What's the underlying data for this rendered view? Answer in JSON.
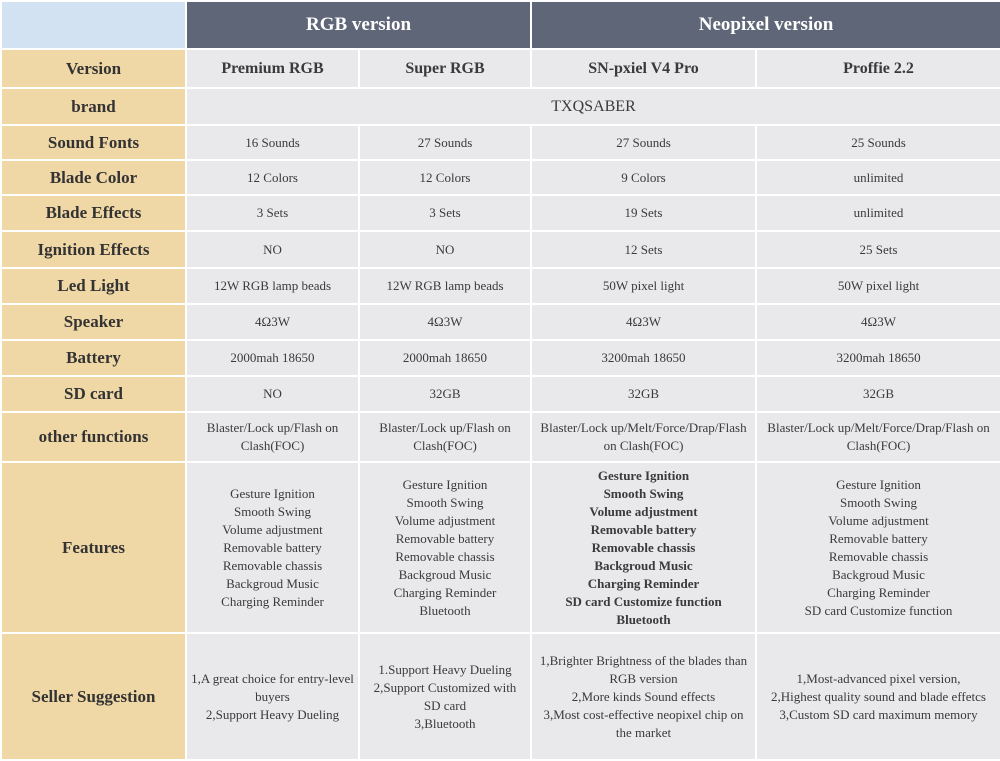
{
  "header": {
    "groups": [
      "RGB version",
      "Neopixel version"
    ]
  },
  "table": {
    "rows": [
      {
        "label": "Version",
        "cells": [
          "Premium RGB",
          "Super RGB",
          "SN-pxiel V4 Pro",
          "Proffie 2.2"
        ]
      },
      {
        "label": "brand",
        "cells": [
          "TXQSABER"
        ]
      },
      {
        "label": "Sound Fonts",
        "cells": [
          "16 Sounds",
          "27 Sounds",
          "27 Sounds",
          "25 Sounds"
        ]
      },
      {
        "label": "Blade Color",
        "cells": [
          "12 Colors",
          "12 Colors",
          "9 Colors",
          "unlimited"
        ]
      },
      {
        "label": "Blade Effects",
        "cells": [
          "3 Sets",
          "3 Sets",
          "19 Sets",
          "unlimited"
        ]
      },
      {
        "label": "Ignition Effects",
        "cells": [
          "NO",
          "NO",
          "12 Sets",
          "25 Sets"
        ]
      },
      {
        "label": "Led Light",
        "cells": [
          "12W RGB lamp beads",
          "12W RGB lamp beads",
          "50W pixel light",
          "50W pixel light"
        ]
      },
      {
        "label": "Speaker",
        "cells": [
          "4Ω3W",
          "4Ω3W",
          "4Ω3W",
          "4Ω3W"
        ]
      },
      {
        "label": "Battery",
        "cells": [
          "2000mah 18650",
          "2000mah 18650",
          "3200mah 18650",
          "3200mah 18650"
        ]
      },
      {
        "label": "SD card",
        "cells": [
          "NO",
          "32GB",
          "32GB",
          "32GB"
        ]
      },
      {
        "label": "other functions",
        "cells": [
          "Blaster/Lock up/Flash on Clash(FOC)",
          "Blaster/Lock up/Flash on Clash(FOC)",
          "Blaster/Lock up/Melt/Force/Drap/Flash on Clash(FOC)",
          "Blaster/Lock up/Melt/Force/Drap/Flash on Clash(FOC)"
        ]
      },
      {
        "label": "Features",
        "cells": [
          [
            "Gesture Ignition",
            "Smooth Swing",
            "Volume adjustment",
            "Removable battery",
            "Removable chassis",
            "Backgroud Music",
            "Charging Reminder"
          ],
          [
            "Gesture Ignition",
            "Smooth Swing",
            "Volume adjustment",
            "Removable battery",
            "Removable chassis",
            "Backgroud Music",
            "Charging Reminder",
            "Bluetooth"
          ],
          [
            "Gesture Ignition",
            "Smooth Swing",
            "Volume adjustment",
            "Removable battery",
            "Removable chassis",
            "Backgroud Music",
            "Charging Reminder",
            "SD card Customize function",
            "Bluetooth"
          ],
          [
            "Gesture Ignition",
            "Smooth Swing",
            "Volume adjustment",
            "Removable battery",
            "Removable chassis",
            "Backgroud Music",
            "Charging Reminder",
            "SD card Customize function"
          ]
        ]
      },
      {
        "label": "Seller Suggestion",
        "cells": [
          [
            "1,A great choice for entry-level buyers",
            "2,Support Heavy Dueling"
          ],
          [
            "1.Support Heavy Dueling",
            "2,Support Customized with SD card",
            "3,Bluetooth"
          ],
          [
            "1,Brighter Brightness of the blades than RGB version",
            "2,More kinds Sound effects",
            "3,Most cost-effective neopixel chip on the market"
          ],
          [
            "1,Most-advanced pixel version,",
            "2,Highest quality sound and blade effetcs",
            "3,Custom SD card maximum memory"
          ]
        ]
      }
    ]
  }
}
